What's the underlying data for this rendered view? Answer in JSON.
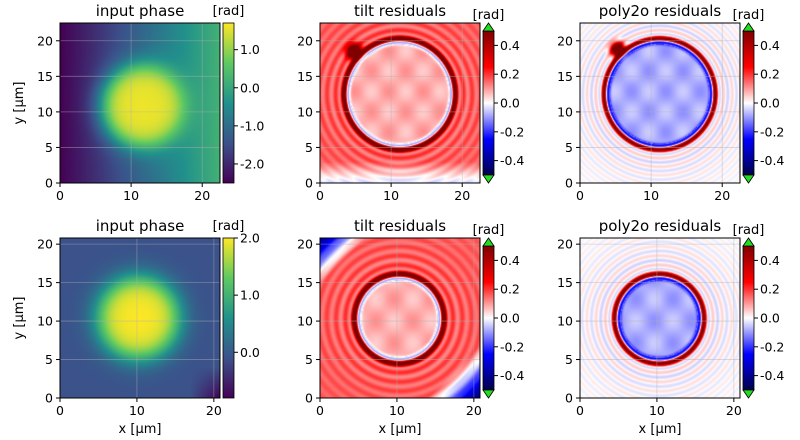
{
  "chart_data": [
    {
      "type": "heatmap",
      "title": "input phase",
      "colormap": "viridis",
      "xlabel": "",
      "ylabel": "y [µm]",
      "xlim": [
        0,
        22.5
      ],
      "ylim": [
        0,
        22.5
      ],
      "xticks": [
        "0",
        "10",
        "20"
      ],
      "yticks": [
        "0",
        "5",
        "10",
        "15",
        "20"
      ],
      "xtick_values": [
        0,
        10,
        20
      ],
      "ytick_values": [
        0,
        5,
        10,
        15,
        20
      ],
      "colorbar": {
        "label": "[rad]",
        "range": [
          -2.5,
          1.7
        ],
        "ticks": [
          "-2.0",
          "-1.0",
          "0.0",
          "1.0"
        ],
        "tick_values": [
          -2,
          -1,
          0,
          1
        ],
        "extend": false
      },
      "pattern": {
        "cx": 11.7,
        "cy": 10.8,
        "r": 5.7,
        "base_left": -2.5,
        "base_right": 0.2,
        "peak": 1.6
      }
    },
    {
      "type": "heatmap",
      "title": "tilt residuals",
      "colormap": "seismic",
      "xlabel": "",
      "ylabel": "",
      "xlim": [
        0,
        22.5
      ],
      "ylim": [
        0,
        22.5
      ],
      "xticks": [
        "0",
        "10",
        "20"
      ],
      "yticks": [
        "0",
        "5",
        "10",
        "15",
        "20"
      ],
      "xtick_values": [
        0,
        10,
        20
      ],
      "ytick_values": [
        0,
        5,
        10,
        15,
        20
      ],
      "colorbar": {
        "label": "[rad]",
        "range": [
          -0.5,
          0.5
        ],
        "ticks": [
          "0.4",
          "0.2",
          "0.0",
          "-0.2",
          "-0.4"
        ],
        "tick_values": [
          0.4,
          0.2,
          0,
          -0.2,
          -0.4
        ],
        "extend": true
      },
      "pattern": {
        "cx": 11.2,
        "cy": 12.5,
        "r": 7.8,
        "blob": [
          4.8,
          18.5
        ]
      }
    },
    {
      "type": "heatmap",
      "title": "poly2o residuals",
      "colormap": "seismic",
      "xlabel": "",
      "ylabel": "",
      "xlim": [
        0,
        22.5
      ],
      "ylim": [
        0,
        22.5
      ],
      "xticks": [
        "0",
        "10",
        "20"
      ],
      "yticks": [
        "0",
        "5",
        "10",
        "15",
        "20"
      ],
      "xtick_values": [
        0,
        10,
        20
      ],
      "ytick_values": [
        0,
        5,
        10,
        15,
        20
      ],
      "colorbar": {
        "label": "[rad]",
        "range": [
          -0.5,
          0.5
        ],
        "ticks": [
          "0.4",
          "0.2",
          "0.0",
          "-0.2",
          "-0.4"
        ],
        "tick_values": [
          0.4,
          0.2,
          0,
          -0.2,
          -0.4
        ],
        "extend": true
      },
      "pattern": {
        "cx": 11.2,
        "cy": 12.5,
        "r": 7.8,
        "blob": [
          5.3,
          18.8
        ]
      }
    },
    {
      "type": "heatmap",
      "title": "input phase",
      "colormap": "viridis",
      "xlabel": "x [µm]",
      "ylabel": "y [µm]",
      "xlim": [
        0,
        20.8
      ],
      "ylim": [
        0,
        20.8
      ],
      "xticks": [
        "0",
        "10",
        "20"
      ],
      "yticks": [
        "0",
        "5",
        "10",
        "15",
        "20"
      ],
      "xtick_values": [
        0,
        10,
        20
      ],
      "ytick_values": [
        0,
        5,
        10,
        15,
        20
      ],
      "colorbar": {
        "label": "[rad]",
        "range": [
          -0.8,
          2.0
        ],
        "ticks": [
          "2.0",
          "1.0",
          "0.0"
        ],
        "tick_values": [
          2,
          1,
          0
        ],
        "extend": false
      },
      "pattern": {
        "cx": 10.2,
        "cy": 10.4,
        "r": 5.2,
        "base": -0.1,
        "peak": 2.0
      }
    },
    {
      "type": "heatmap",
      "title": "tilt residuals",
      "colormap": "seismic",
      "xlabel": "x [µm]",
      "ylabel": "",
      "xlim": [
        0,
        20.8
      ],
      "ylim": [
        0,
        20.8
      ],
      "xticks": [
        "0",
        "10",
        "20"
      ],
      "yticks": [
        "0",
        "5",
        "10",
        "15",
        "20"
      ],
      "xtick_values": [
        0,
        10,
        20
      ],
      "ytick_values": [
        0,
        5,
        10,
        15,
        20
      ],
      "colorbar": {
        "label": "[rad]",
        "range": [
          -0.5,
          0.5
        ],
        "ticks": [
          "0.4",
          "0.2",
          "0.0",
          "-0.2",
          "-0.4"
        ],
        "tick_values": [
          0.4,
          0.2,
          0,
          -0.2,
          -0.4
        ],
        "extend": true
      },
      "pattern": {
        "cx": 10.3,
        "cy": 10.3,
        "r": 5.8
      }
    },
    {
      "type": "heatmap",
      "title": "poly2o residuals",
      "colormap": "seismic",
      "xlabel": "x [µm]",
      "ylabel": "",
      "xlim": [
        0,
        20.8
      ],
      "ylim": [
        0,
        20.8
      ],
      "xticks": [
        "0",
        "10",
        "20"
      ],
      "yticks": [
        "0",
        "5",
        "10",
        "15",
        "20"
      ],
      "xtick_values": [
        0,
        10,
        20
      ],
      "ytick_values": [
        0,
        5,
        10,
        15,
        20
      ],
      "colorbar": {
        "label": "[rad]",
        "range": [
          -0.5,
          0.5
        ],
        "ticks": [
          "0.4",
          "0.2",
          "0.0",
          "-0.2",
          "-0.4"
        ],
        "tick_values": [
          0.4,
          0.2,
          0,
          -0.2,
          -0.4
        ],
        "extend": true
      },
      "pattern": {
        "cx": 10.3,
        "cy": 10.3,
        "r": 5.8
      }
    }
  ]
}
